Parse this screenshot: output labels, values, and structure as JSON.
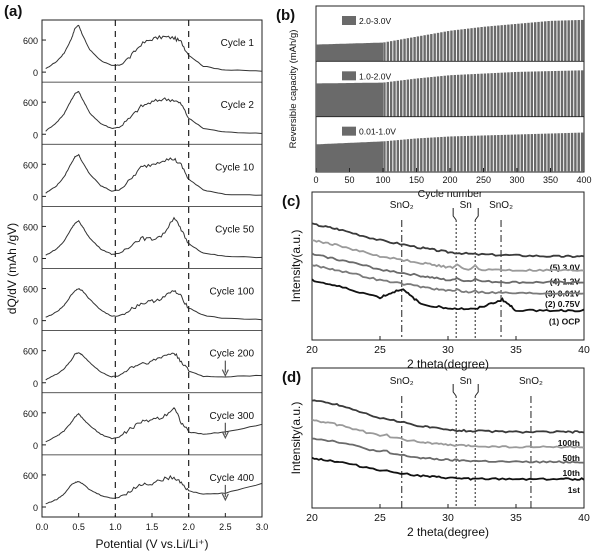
{
  "panels": {
    "a": {
      "label": "(a)"
    },
    "b": {
      "label": "(b)"
    },
    "c": {
      "label": "(c)"
    },
    "d": {
      "label": "(d)"
    }
  },
  "chart_data": [
    {
      "id": "a",
      "type": "line",
      "ylabel": "dQ/dV (mAh /gV)",
      "xlabel": "Potential (V vs.Li/Li⁺)",
      "xlim": [
        0.0,
        3.0
      ],
      "xticks": [
        "0.0",
        "0.5",
        "1.0",
        "1.5",
        "2.0",
        "2.5",
        "3.0"
      ],
      "yticks": [
        "0",
        "600"
      ],
      "dashed_lines_x": [
        1.0,
        2.0
      ],
      "ylim": [
        0,
        900
      ],
      "grid": false,
      "series": [
        {
          "name": "Cycle 1",
          "x": [
            0.05,
            0.2,
            0.3,
            0.4,
            0.45,
            0.5,
            0.55,
            0.65,
            0.8,
            0.95,
            1.05,
            1.2,
            1.35,
            1.5,
            1.65,
            1.8,
            1.9,
            2.0,
            2.2,
            2.5,
            3.0
          ],
          "y": [
            60,
            200,
            350,
            620,
            820,
            880,
            700,
            420,
            220,
            120,
            130,
            280,
            520,
            620,
            660,
            640,
            560,
            320,
            110,
            40,
            20
          ]
        },
        {
          "name": "Cycle 2",
          "x": [
            0.05,
            0.2,
            0.3,
            0.4,
            0.45,
            0.5,
            0.55,
            0.65,
            0.8,
            0.95,
            1.05,
            1.2,
            1.35,
            1.5,
            1.65,
            1.8,
            1.9,
            2.0,
            2.2,
            2.5,
            3.0
          ],
          "y": [
            60,
            220,
            380,
            640,
            760,
            800,
            660,
            400,
            200,
            110,
            130,
            300,
            520,
            600,
            660,
            640,
            560,
            300,
            110,
            40,
            20
          ]
        },
        {
          "name": "Cycle 10",
          "x": [
            0.05,
            0.2,
            0.3,
            0.4,
            0.45,
            0.5,
            0.55,
            0.65,
            0.8,
            0.95,
            1.05,
            1.2,
            1.35,
            1.5,
            1.65,
            1.8,
            1.9,
            2.0,
            2.2,
            2.5,
            3.0
          ],
          "y": [
            60,
            200,
            360,
            620,
            740,
            780,
            640,
            420,
            200,
            100,
            120,
            300,
            540,
            600,
            680,
            700,
            580,
            320,
            120,
            40,
            20
          ]
        },
        {
          "name": "Cycle 50",
          "x": [
            0.05,
            0.2,
            0.3,
            0.4,
            0.45,
            0.5,
            0.55,
            0.65,
            0.8,
            0.95,
            1.05,
            1.2,
            1.35,
            1.5,
            1.65,
            1.8,
            1.9,
            2.0,
            2.2,
            2.5,
            3.0
          ],
          "y": [
            60,
            180,
            320,
            560,
            660,
            700,
            600,
            380,
            180,
            80,
            90,
            240,
            380,
            360,
            440,
            780,
            520,
            280,
            100,
            40,
            20
          ]
        },
        {
          "name": "Cycle 100",
          "x": [
            0.05,
            0.2,
            0.3,
            0.4,
            0.45,
            0.5,
            0.55,
            0.65,
            0.8,
            0.95,
            1.05,
            1.2,
            1.35,
            1.5,
            1.65,
            1.8,
            1.9,
            2.0,
            2.2,
            2.5,
            3.0
          ],
          "y": [
            60,
            160,
            280,
            480,
            560,
            600,
            560,
            400,
            200,
            80,
            90,
            200,
            320,
            360,
            430,
            560,
            440,
            240,
            100,
            40,
            20
          ]
        },
        {
          "name": "Cycle 200",
          "x": [
            0.05,
            0.2,
            0.3,
            0.4,
            0.45,
            0.5,
            0.55,
            0.65,
            0.8,
            0.95,
            1.05,
            1.2,
            1.35,
            1.5,
            1.65,
            1.8,
            1.9,
            2.0,
            2.2,
            2.5,
            3.0
          ],
          "y": [
            60,
            160,
            260,
            420,
            540,
            560,
            520,
            380,
            200,
            110,
            130,
            280,
            360,
            400,
            500,
            560,
            400,
            220,
            120,
            110,
            140
          ]
        },
        {
          "name": "Cycle 300",
          "x": [
            0.05,
            0.2,
            0.3,
            0.4,
            0.45,
            0.5,
            0.55,
            0.65,
            0.8,
            0.95,
            1.05,
            1.2,
            1.35,
            1.5,
            1.65,
            1.8,
            1.9,
            2.0,
            2.2,
            2.5,
            3.0
          ],
          "y": [
            60,
            160,
            260,
            420,
            520,
            580,
            500,
            360,
            200,
            120,
            140,
            300,
            420,
            480,
            520,
            700,
            420,
            240,
            200,
            240,
            380
          ]
        },
        {
          "name": "Cycle 400",
          "x": [
            0.05,
            0.2,
            0.3,
            0.4,
            0.45,
            0.5,
            0.55,
            0.65,
            0.8,
            0.95,
            1.05,
            1.2,
            1.35,
            1.5,
            1.65,
            1.8,
            1.9,
            2.0,
            2.2,
            2.5,
            3.0
          ],
          "y": [
            60,
            140,
            240,
            420,
            460,
            480,
            440,
            320,
            220,
            160,
            180,
            300,
            420,
            440,
            520,
            560,
            460,
            300,
            240,
            260,
            440
          ]
        }
      ],
      "annotations": [
        {
          "text": "Cycle 1"
        },
        {
          "text": "Cycle 2"
        },
        {
          "text": "Cycle 10"
        },
        {
          "text": "Cycle 50"
        },
        {
          "text": "Cycle 100"
        },
        {
          "text": "Cycle 200"
        },
        {
          "text": "Cycle 300"
        },
        {
          "text": "Cycle 400"
        }
      ]
    },
    {
      "id": "b",
      "type": "bar",
      "ylabel": "Reversible capacity (mAh/g)",
      "xlabel": "Cycle number",
      "xlim": [
        0,
        400
      ],
      "xticks": [
        "0",
        "50",
        "100",
        "150",
        "200",
        "250",
        "300",
        "350",
        "400"
      ],
      "series": [
        {
          "name": "2.0-3.0V",
          "x": [
            0,
            100,
            150,
            200,
            250,
            300,
            350,
            400
          ],
          "y": [
            150,
            170,
            230,
            290,
            330,
            360,
            390,
            400
          ],
          "ylim": [
            0,
            500
          ]
        },
        {
          "name": "1.0-2.0V",
          "x": [
            0,
            100,
            150,
            200,
            250,
            300,
            350,
            400
          ],
          "y": [
            380,
            390,
            440,
            480,
            500,
            520,
            530,
            540
          ],
          "ylim": [
            0,
            600
          ]
        },
        {
          "name": "0.01-1.0V",
          "x": [
            0,
            100,
            150,
            200,
            250,
            300,
            350,
            400
          ],
          "y": [
            260,
            290,
            320,
            340,
            350,
            360,
            370,
            380
          ],
          "ylim": [
            0,
            500
          ]
        }
      ]
    },
    {
      "id": "c",
      "type": "line",
      "ylabel": "Intensity(a.u.)",
      "xlabel": "2 theta(degree)",
      "xlim": [
        20,
        40
      ],
      "xticks": [
        "20",
        "25",
        "30",
        "35",
        "40"
      ],
      "ref_lines": [
        {
          "label": "SnO₂",
          "x": 26.6,
          "style": "dashdot"
        },
        {
          "label": "Sn",
          "x": 30.6,
          "style": "dot"
        },
        {
          "label": "Sn",
          "x": 32.0,
          "style": "dot"
        },
        {
          "label": "SnO₂",
          "x": 33.9,
          "style": "dashdot"
        }
      ],
      "series": [
        {
          "name": "(5) 3.0V",
          "x": [
            20,
            22,
            25,
            28,
            30,
            32,
            35,
            38,
            40
          ],
          "y": [
            1.0,
            0.95,
            0.85,
            0.78,
            0.74,
            0.72,
            0.71,
            0.7,
            0.7
          ]
        },
        {
          "name": "(4) 1.2V",
          "x": [
            20,
            22,
            25,
            28,
            30,
            32,
            35,
            38,
            40
          ],
          "y": [
            0.85,
            0.8,
            0.7,
            0.64,
            0.6,
            0.58,
            0.57,
            0.57,
            0.57
          ]
        },
        {
          "name": "(3) 0.01V",
          "x": [
            20,
            22,
            25,
            28,
            30,
            32,
            35,
            38,
            40
          ],
          "y": [
            0.72,
            0.67,
            0.58,
            0.52,
            0.48,
            0.47,
            0.46,
            0.46,
            0.46
          ]
        },
        {
          "name": "(2) 0.75V",
          "x": [
            20,
            22,
            25,
            28,
            30,
            32,
            35,
            38,
            40
          ],
          "y": [
            0.62,
            0.57,
            0.48,
            0.42,
            0.38,
            0.37,
            0.36,
            0.36,
            0.36
          ]
        },
        {
          "name": "(1) OCP",
          "x": [
            20,
            22,
            25,
            26.6,
            28,
            30,
            32,
            34,
            35,
            38,
            40
          ],
          "y": [
            0.48,
            0.42,
            0.32,
            0.4,
            0.26,
            0.22,
            0.21,
            0.3,
            0.2,
            0.2,
            0.2
          ]
        }
      ]
    },
    {
      "id": "d",
      "type": "line",
      "ylabel": "Intensity(a.u.)",
      "xlabel": "2 theta(degree)",
      "xlim": [
        20,
        40
      ],
      "xticks": [
        "20",
        "25",
        "30",
        "35",
        "40"
      ],
      "ref_lines": [
        {
          "label": "SnO₂",
          "x": 26.6,
          "style": "dashdot"
        },
        {
          "label": "Sn",
          "x": 30.6,
          "style": "dot"
        },
        {
          "label": "Sn",
          "x": 32.0,
          "style": "dot"
        },
        {
          "label": "SnO₂",
          "x": 36.1,
          "style": "dashdot"
        }
      ],
      "series": [
        {
          "name": "100th",
          "x": [
            20,
            22,
            25,
            28,
            30,
            32,
            35,
            38,
            40
          ],
          "y": [
            1.0,
            0.95,
            0.82,
            0.74,
            0.7,
            0.69,
            0.68,
            0.68,
            0.68
          ]
        },
        {
          "name": "50th",
          "x": [
            20,
            22,
            25,
            28,
            30,
            32,
            35,
            38,
            40
          ],
          "y": [
            0.8,
            0.75,
            0.64,
            0.58,
            0.55,
            0.54,
            0.53,
            0.53,
            0.53
          ]
        },
        {
          "name": "10th",
          "x": [
            20,
            22,
            25,
            28,
            30,
            32,
            35,
            38,
            40
          ],
          "y": [
            0.62,
            0.58,
            0.48,
            0.42,
            0.4,
            0.39,
            0.38,
            0.38,
            0.38
          ]
        },
        {
          "name": "1st",
          "x": [
            20,
            22,
            25,
            28,
            30,
            32,
            35,
            38,
            40
          ],
          "y": [
            0.42,
            0.38,
            0.3,
            0.24,
            0.22,
            0.21,
            0.21,
            0.21,
            0.21
          ]
        }
      ]
    }
  ]
}
